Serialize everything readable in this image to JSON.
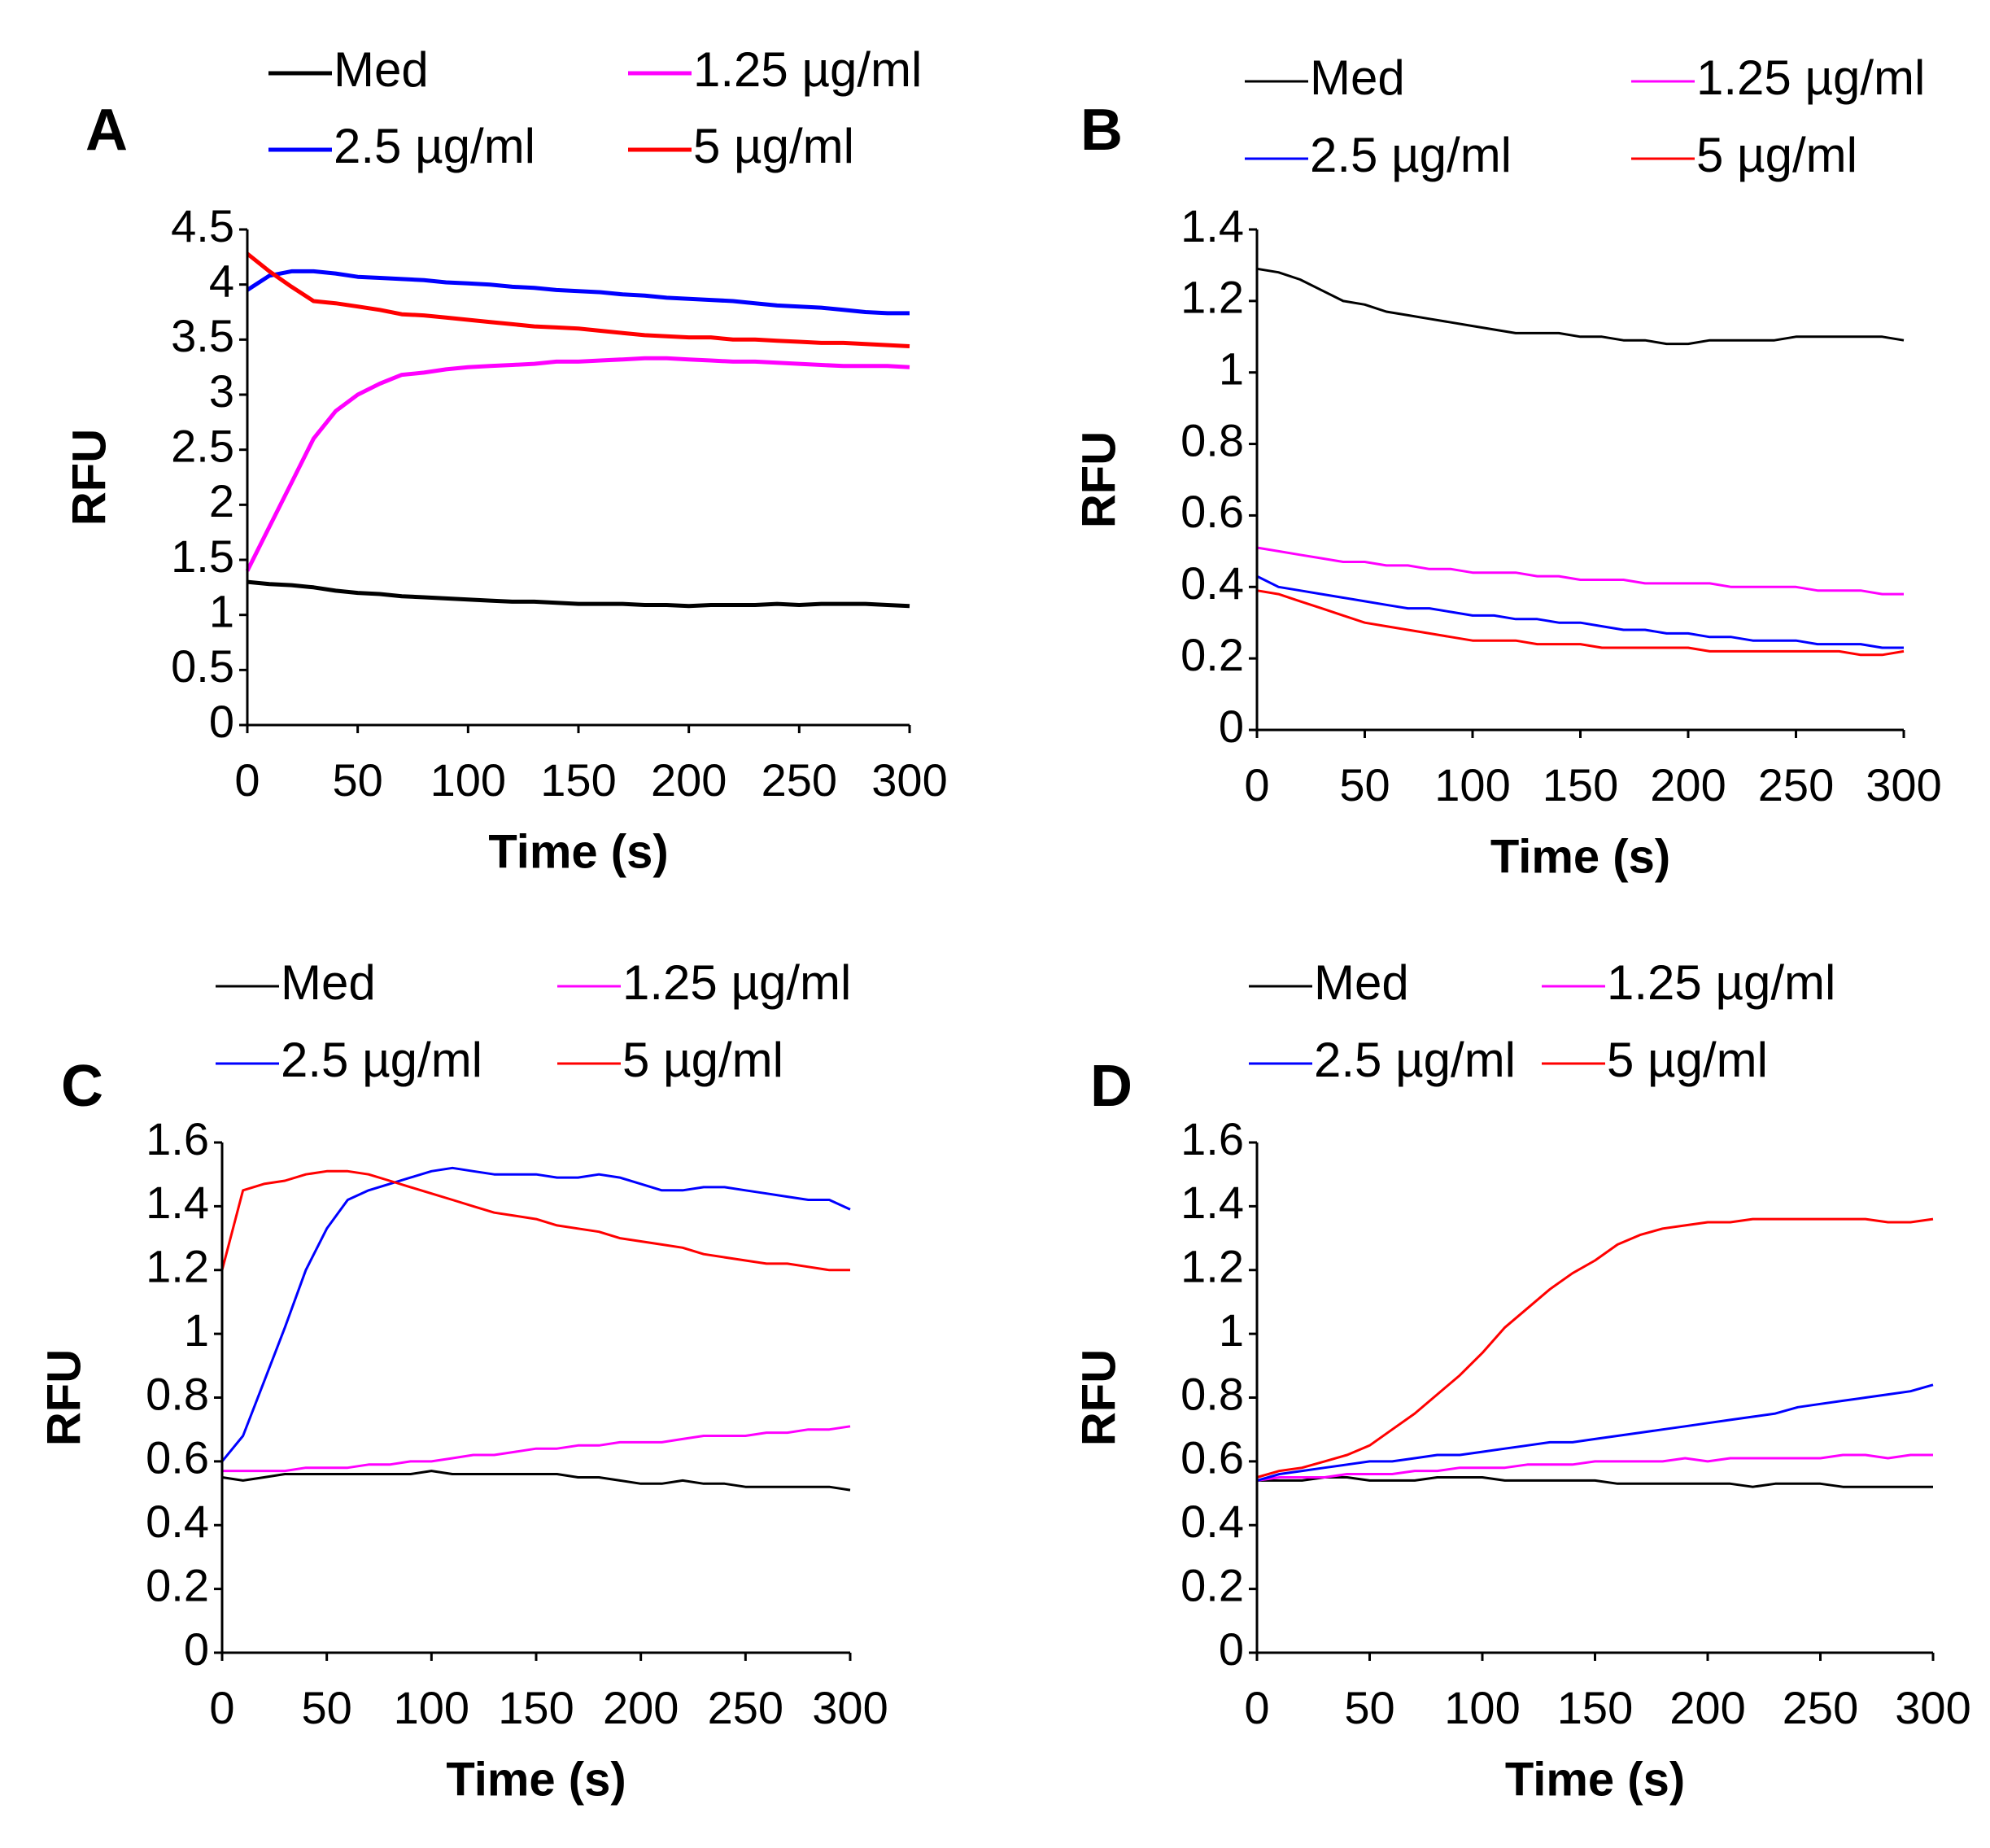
{
  "chart_data": [
    {
      "type": "line",
      "label": "A",
      "x_label": "Time (s)",
      "y_label": "RFU",
      "x": [
        0,
        10,
        20,
        30,
        40,
        50,
        60,
        70,
        80,
        90,
        100,
        110,
        120,
        130,
        140,
        150,
        160,
        170,
        180,
        190,
        200,
        210,
        220,
        230,
        240,
        250,
        260,
        270,
        280,
        290,
        300
      ],
      "xlim": [
        0,
        300
      ],
      "xticks": [
        0,
        50,
        100,
        150,
        200,
        250,
        300
      ],
      "ylim": [
        0,
        4.5
      ],
      "yticks": [
        0,
        0.5,
        1,
        1.5,
        2,
        2.5,
        3,
        3.5,
        4,
        4.5
      ],
      "series": [
        {
          "name": "Med",
          "color": "#000000",
          "values": [
            1.3,
            1.28,
            1.27,
            1.25,
            1.22,
            1.2,
            1.19,
            1.17,
            1.16,
            1.15,
            1.14,
            1.13,
            1.12,
            1.12,
            1.11,
            1.1,
            1.1,
            1.1,
            1.09,
            1.09,
            1.08,
            1.09,
            1.09,
            1.09,
            1.1,
            1.09,
            1.1,
            1.1,
            1.1,
            1.09,
            1.08
          ]
        },
        {
          "name": "1.25 µg/ml",
          "color": "#ff00ff",
          "values": [
            1.4,
            1.8,
            2.2,
            2.6,
            2.85,
            3.0,
            3.1,
            3.18,
            3.2,
            3.23,
            3.25,
            3.26,
            3.27,
            3.28,
            3.3,
            3.3,
            3.31,
            3.32,
            3.33,
            3.33,
            3.32,
            3.31,
            3.3,
            3.3,
            3.29,
            3.28,
            3.27,
            3.26,
            3.26,
            3.26,
            3.25
          ]
        },
        {
          "name": "2.5 µg/ml",
          "color": "#0000ff",
          "values": [
            3.95,
            4.08,
            4.12,
            4.12,
            4.1,
            4.07,
            4.06,
            4.05,
            4.04,
            4.02,
            4.01,
            4.0,
            3.98,
            3.97,
            3.95,
            3.94,
            3.93,
            3.91,
            3.9,
            3.88,
            3.87,
            3.86,
            3.85,
            3.83,
            3.81,
            3.8,
            3.79,
            3.77,
            3.75,
            3.74,
            3.74
          ]
        },
        {
          "name": "5 µg/ml",
          "color": "#ff0000",
          "values": [
            4.28,
            4.12,
            3.98,
            3.85,
            3.83,
            3.8,
            3.77,
            3.73,
            3.72,
            3.7,
            3.68,
            3.66,
            3.64,
            3.62,
            3.61,
            3.6,
            3.58,
            3.56,
            3.54,
            3.53,
            3.52,
            3.52,
            3.5,
            3.5,
            3.49,
            3.48,
            3.47,
            3.47,
            3.46,
            3.45,
            3.44
          ]
        }
      ]
    },
    {
      "type": "line",
      "label": "B",
      "x_label": "Time (s)",
      "y_label": "RFU",
      "x": [
        0,
        10,
        20,
        30,
        40,
        50,
        60,
        70,
        80,
        90,
        100,
        110,
        120,
        130,
        140,
        150,
        160,
        170,
        180,
        190,
        200,
        210,
        220,
        230,
        240,
        250,
        260,
        270,
        280,
        290,
        300
      ],
      "xlim": [
        0,
        300
      ],
      "xticks": [
        0,
        50,
        100,
        150,
        200,
        250,
        300
      ],
      "ylim": [
        0,
        1.4
      ],
      "yticks": [
        0,
        0.2,
        0.4,
        0.6,
        0.8,
        1,
        1.2,
        1.4
      ],
      "series": [
        {
          "name": "Med",
          "color": "#000000",
          "values": [
            1.29,
            1.28,
            1.26,
            1.23,
            1.2,
            1.19,
            1.17,
            1.16,
            1.15,
            1.14,
            1.13,
            1.12,
            1.11,
            1.11,
            1.11,
            1.1,
            1.1,
            1.09,
            1.09,
            1.08,
            1.08,
            1.09,
            1.09,
            1.09,
            1.09,
            1.1,
            1.1,
            1.1,
            1.1,
            1.1,
            1.09
          ]
        },
        {
          "name": "1.25 µg/ml",
          "color": "#ff00ff",
          "values": [
            0.51,
            0.5,
            0.49,
            0.48,
            0.47,
            0.47,
            0.46,
            0.46,
            0.45,
            0.45,
            0.44,
            0.44,
            0.44,
            0.43,
            0.43,
            0.42,
            0.42,
            0.42,
            0.41,
            0.41,
            0.41,
            0.41,
            0.4,
            0.4,
            0.4,
            0.4,
            0.39,
            0.39,
            0.39,
            0.38,
            0.38
          ]
        },
        {
          "name": "2.5 µg/ml",
          "color": "#0000ff",
          "values": [
            0.43,
            0.4,
            0.39,
            0.38,
            0.37,
            0.36,
            0.35,
            0.34,
            0.34,
            0.33,
            0.32,
            0.32,
            0.31,
            0.31,
            0.3,
            0.3,
            0.29,
            0.28,
            0.28,
            0.27,
            0.27,
            0.26,
            0.26,
            0.25,
            0.25,
            0.25,
            0.24,
            0.24,
            0.24,
            0.23,
            0.23
          ]
        },
        {
          "name": "5 µg/ml",
          "color": "#ff0000",
          "values": [
            0.39,
            0.38,
            0.36,
            0.34,
            0.32,
            0.3,
            0.29,
            0.28,
            0.27,
            0.26,
            0.25,
            0.25,
            0.25,
            0.24,
            0.24,
            0.24,
            0.23,
            0.23,
            0.23,
            0.23,
            0.23,
            0.22,
            0.22,
            0.22,
            0.22,
            0.22,
            0.22,
            0.22,
            0.21,
            0.21,
            0.22
          ]
        }
      ]
    },
    {
      "type": "line",
      "label": "C",
      "x_label": "Time (s)",
      "y_label": "RFU",
      "x": [
        0,
        10,
        20,
        30,
        40,
        50,
        60,
        70,
        80,
        90,
        100,
        110,
        120,
        130,
        140,
        150,
        160,
        170,
        180,
        190,
        200,
        210,
        220,
        230,
        240,
        250,
        260,
        270,
        280,
        290,
        300
      ],
      "xlim": [
        0,
        300
      ],
      "xticks": [
        0,
        50,
        100,
        150,
        200,
        250,
        300
      ],
      "ylim": [
        0,
        1.6
      ],
      "yticks": [
        0,
        0.2,
        0.4,
        0.6,
        0.8,
        1,
        1.2,
        1.4,
        1.6
      ],
      "series": [
        {
          "name": "Med",
          "color": "#000000",
          "values": [
            0.55,
            0.54,
            0.55,
            0.56,
            0.56,
            0.56,
            0.56,
            0.56,
            0.56,
            0.56,
            0.57,
            0.56,
            0.56,
            0.56,
            0.56,
            0.56,
            0.56,
            0.55,
            0.55,
            0.54,
            0.53,
            0.53,
            0.54,
            0.53,
            0.53,
            0.52,
            0.52,
            0.52,
            0.52,
            0.52,
            0.51
          ]
        },
        {
          "name": "1.25 µg/ml",
          "color": "#ff00ff",
          "values": [
            0.57,
            0.57,
            0.57,
            0.57,
            0.58,
            0.58,
            0.58,
            0.59,
            0.59,
            0.6,
            0.6,
            0.61,
            0.62,
            0.62,
            0.63,
            0.64,
            0.64,
            0.65,
            0.65,
            0.66,
            0.66,
            0.66,
            0.67,
            0.68,
            0.68,
            0.68,
            0.69,
            0.69,
            0.7,
            0.7,
            0.71
          ]
        },
        {
          "name": "2.5 µg/ml",
          "color": "#0000ff",
          "values": [
            0.6,
            0.68,
            0.85,
            1.02,
            1.2,
            1.33,
            1.42,
            1.45,
            1.47,
            1.49,
            1.51,
            1.52,
            1.51,
            1.5,
            1.5,
            1.5,
            1.49,
            1.49,
            1.5,
            1.49,
            1.47,
            1.45,
            1.45,
            1.46,
            1.46,
            1.45,
            1.44,
            1.43,
            1.42,
            1.42,
            1.39
          ]
        },
        {
          "name": "5 µg/ml",
          "color": "#ff0000",
          "values": [
            1.2,
            1.45,
            1.47,
            1.48,
            1.5,
            1.51,
            1.51,
            1.5,
            1.48,
            1.46,
            1.44,
            1.42,
            1.4,
            1.38,
            1.37,
            1.36,
            1.34,
            1.33,
            1.32,
            1.3,
            1.29,
            1.28,
            1.27,
            1.25,
            1.24,
            1.23,
            1.22,
            1.22,
            1.21,
            1.2,
            1.2
          ]
        }
      ]
    },
    {
      "type": "line",
      "label": "D",
      "x_label": "Time (s)",
      "y_label": "RFU",
      "x": [
        0,
        10,
        20,
        30,
        40,
        50,
        60,
        70,
        80,
        90,
        100,
        110,
        120,
        130,
        140,
        150,
        160,
        170,
        180,
        190,
        200,
        210,
        220,
        230,
        240,
        250,
        260,
        270,
        280,
        290,
        300
      ],
      "xlim": [
        0,
        300
      ],
      "xticks": [
        0,
        50,
        100,
        150,
        200,
        250,
        300
      ],
      "ylim": [
        0,
        1.6
      ],
      "yticks": [
        0,
        0.2,
        0.4,
        0.6,
        0.8,
        1,
        1.2,
        1.4,
        1.6
      ],
      "series": [
        {
          "name": "Med",
          "color": "#000000",
          "values": [
            0.54,
            0.54,
            0.54,
            0.55,
            0.55,
            0.54,
            0.54,
            0.54,
            0.55,
            0.55,
            0.55,
            0.54,
            0.54,
            0.54,
            0.54,
            0.54,
            0.53,
            0.53,
            0.53,
            0.53,
            0.53,
            0.53,
            0.52,
            0.53,
            0.53,
            0.53,
            0.52,
            0.52,
            0.52,
            0.52,
            0.52
          ]
        },
        {
          "name": "1.25 µg/ml",
          "color": "#ff00ff",
          "values": [
            0.54,
            0.55,
            0.55,
            0.55,
            0.56,
            0.56,
            0.56,
            0.57,
            0.57,
            0.58,
            0.58,
            0.58,
            0.59,
            0.59,
            0.59,
            0.6,
            0.6,
            0.6,
            0.6,
            0.61,
            0.6,
            0.61,
            0.61,
            0.61,
            0.61,
            0.61,
            0.62,
            0.62,
            0.61,
            0.62,
            0.62
          ]
        },
        {
          "name": "2.5 µg/ml",
          "color": "#0000ff",
          "values": [
            0.54,
            0.56,
            0.57,
            0.58,
            0.59,
            0.6,
            0.6,
            0.61,
            0.62,
            0.62,
            0.63,
            0.64,
            0.65,
            0.66,
            0.66,
            0.67,
            0.68,
            0.69,
            0.7,
            0.71,
            0.72,
            0.73,
            0.74,
            0.75,
            0.77,
            0.78,
            0.79,
            0.8,
            0.81,
            0.82,
            0.84
          ]
        },
        {
          "name": "5 µg/ml",
          "color": "#ff0000",
          "values": [
            0.55,
            0.57,
            0.58,
            0.6,
            0.62,
            0.65,
            0.7,
            0.75,
            0.81,
            0.87,
            0.94,
            1.02,
            1.08,
            1.14,
            1.19,
            1.23,
            1.28,
            1.31,
            1.33,
            1.34,
            1.35,
            1.35,
            1.36,
            1.36,
            1.36,
            1.36,
            1.36,
            1.36,
            1.35,
            1.35,
            1.36
          ]
        }
      ]
    }
  ]
}
